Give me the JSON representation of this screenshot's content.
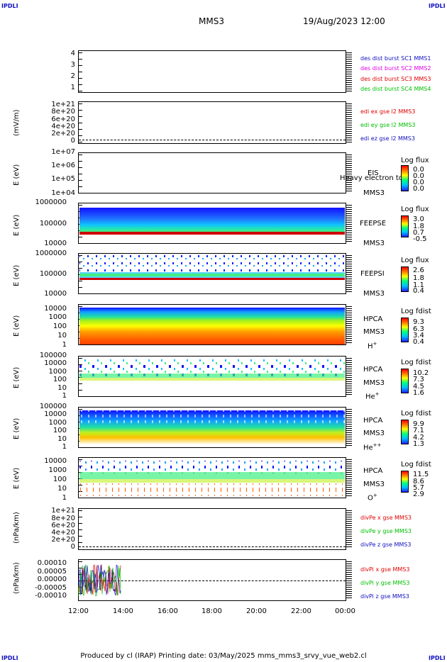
{
  "corner_label": "IPDLI",
  "header": {
    "spacecraft": "MMS3",
    "datetime": "19/Aug/2023 12:00"
  },
  "x_axis": {
    "ticks": [
      "12:00",
      "14:00",
      "16:00",
      "18:00",
      "20:00",
      "22:00",
      "00:00"
    ]
  },
  "panels": [
    {
      "ylabel": "",
      "ticks": [
        "4",
        "3",
        "2",
        "1"
      ],
      "legend": [
        {
          "text": "des dist burst SC1 MMS1",
          "color": "#1010c0"
        },
        {
          "text": "des dist burst SC2 MMS2",
          "color": "#e000e0"
        },
        {
          "text": "des dist burst SC3 MMS3",
          "color": "#e00000"
        },
        {
          "text": "des dist burst SC4 MMS4",
          "color": "#00c000"
        }
      ]
    },
    {
      "ylabel": "(mV/m)",
      "ticks": [
        "1e+21",
        "8e+20",
        "6e+20",
        "4e+20",
        "2e+20",
        "0"
      ],
      "legend": [
        {
          "text": "edi ex gse l2 MMS3",
          "color": "#e00000"
        },
        {
          "text": "edi ey gse l2 MMS3",
          "color": "#00c000"
        },
        {
          "text": "edi ez gse l2 MMS3",
          "color": "#1010c0"
        }
      ]
    },
    {
      "ylabel": "E (eV)",
      "ticks": [
        "1e+07",
        "1e+06",
        "1e+05",
        "1e+04"
      ],
      "instrument": "EIS",
      "sub": "MMS3",
      "overlay": "Heavy electron to",
      "cb_title": "Log flux",
      "cb_values": [
        "0.0",
        "0.0",
        "0.0",
        "0.0"
      ]
    },
    {
      "ylabel": "E (eV)",
      "ticks": [
        "1000000",
        "100000",
        "10000"
      ],
      "instrument": "FEEPSE",
      "sub": "MMS3",
      "cb_title": "Log flux",
      "cb_values": [
        "3.0",
        "1.8",
        "0.7",
        "-0.5"
      ]
    },
    {
      "ylabel": "E (eV)",
      "ticks": [
        "1000000",
        "100000",
        "10000"
      ],
      "instrument": "FEEPSI",
      "sub": "MMS3",
      "cb_title": "Log flux",
      "cb_values": [
        "2.6",
        "1.8",
        "1.1",
        "0.4"
      ]
    },
    {
      "ylabel": "E (eV)",
      "ticks": [
        "10000",
        "1000",
        "100",
        "10",
        "1"
      ],
      "instrument": "HPCA",
      "sub": "MMS3",
      "species": "H",
      "charge": "+",
      "cb_title": "Log fdist",
      "cb_values": [
        "9.3",
        "6.3",
        "3.4",
        "0.4"
      ]
    },
    {
      "ylabel": "E (eV)",
      "ticks": [
        "100000",
        "10000",
        "1000",
        "100",
        "10",
        "1"
      ],
      "instrument": "HPCA",
      "sub": "MMS3",
      "species": "He",
      "charge": "+",
      "cb_title": "Log fdist",
      "cb_values": [
        "10.2",
        "7.3",
        "4.5",
        "1.6"
      ]
    },
    {
      "ylabel": "E (eV)",
      "ticks": [
        "100000",
        "10000",
        "1000",
        "100",
        "10",
        "1"
      ],
      "instrument": "HPCA",
      "sub": "MMS3",
      "species": "He",
      "charge": "++",
      "cb_title": "Log fdist",
      "cb_values": [
        "9.9",
        "7.1",
        "4.2",
        "1.3"
      ]
    },
    {
      "ylabel": "E (eV)",
      "ticks": [
        "10000",
        "1000",
        "100",
        "10",
        "1"
      ],
      "instrument": "HPCA",
      "sub": "MMS3",
      "species": "O",
      "charge": "+",
      "cb_title": "Log fdist",
      "cb_values": [
        "11.5",
        "8.6",
        "5.7",
        "2.9"
      ]
    },
    {
      "ylabel": "(nPa/km)",
      "ticks": [
        "1e+21",
        "8e+20",
        "6e+20",
        "4e+20",
        "2e+20",
        "0"
      ],
      "legend": [
        {
          "text": "divPe x gse MMS3",
          "color": "#e00000"
        },
        {
          "text": "divPe y gse MMS3",
          "color": "#00c000"
        },
        {
          "text": "divPe z gse MMS3",
          "color": "#1010c0"
        }
      ]
    },
    {
      "ylabel": "(nPa/km)",
      "ticks": [
        "0.00010",
        "0.00005",
        "0.00000",
        "-0.00005",
        "-0.00010"
      ],
      "legend": [
        {
          "text": "divPi x gse MMS3",
          "color": "#e00000"
        },
        {
          "text": "divPi y gse MMS3",
          "color": "#00c000"
        },
        {
          "text": "divPi z gse MMS3",
          "color": "#1010c0"
        }
      ]
    }
  ],
  "chart_data": {
    "type": "heatmap",
    "title": "MMS3",
    "x_range": [
      "19/Aug/2023 12:00",
      "20/Aug/2023 00:00"
    ],
    "divPi_series": [
      {
        "name": "divPi x gse MMS3",
        "color": "#e00000",
        "range": [
          -0.0001,
          0.0001
        ],
        "coverage": [
          "12:00",
          "13:55"
        ]
      },
      {
        "name": "divPi y gse MMS3",
        "color": "#00c000",
        "range": [
          -0.0001,
          0.0001
        ],
        "coverage": [
          "12:00",
          "13:55"
        ]
      },
      {
        "name": "divPi z gse MMS3",
        "color": "#1010c0",
        "range": [
          -0.0001,
          0.0001
        ],
        "coverage": [
          "12:00",
          "13:55"
        ]
      }
    ]
  },
  "footer": "Produced by cl (IRAP)   Printing date: 03/May/2025   mms_mms3_srvy_vue_web2.cl"
}
